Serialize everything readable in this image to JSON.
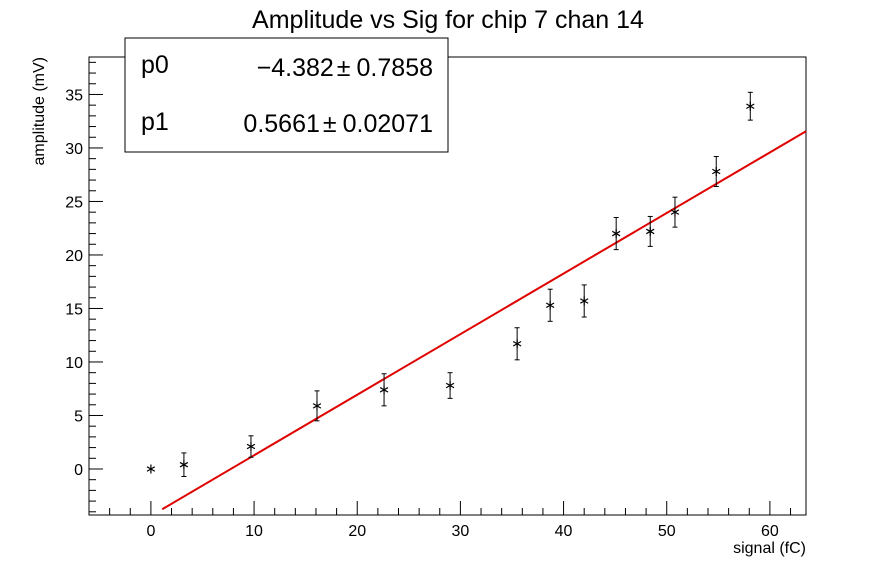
{
  "chart_data": {
    "type": "scatter",
    "title": "Amplitude vs Sig for chip 7 chan 14",
    "xlabel": "signal (fC)",
    "ylabel": "amplitude (mV)",
    "xlim": [
      -6,
      63.5
    ],
    "ylim": [
      -4.3,
      38.5
    ],
    "x_ticks": [
      0,
      10,
      20,
      30,
      40,
      50,
      60
    ],
    "y_ticks": [
      0,
      5,
      10,
      15,
      20,
      25,
      30,
      35
    ],
    "grid": false,
    "series": [
      {
        "marker": "star",
        "color": "#000000",
        "points": [
          {
            "x": 0.0,
            "y": 0.0,
            "err": 0.0
          },
          {
            "x": 3.2,
            "y": 0.4,
            "err": 1.1
          },
          {
            "x": 9.7,
            "y": 2.1,
            "err": 1.0
          },
          {
            "x": 16.1,
            "y": 5.9,
            "err": 1.4
          },
          {
            "x": 22.6,
            "y": 7.4,
            "err": 1.5
          },
          {
            "x": 29.0,
            "y": 7.8,
            "err": 1.2
          },
          {
            "x": 35.5,
            "y": 11.7,
            "err": 1.5
          },
          {
            "x": 38.7,
            "y": 15.3,
            "err": 1.5
          },
          {
            "x": 42.0,
            "y": 15.7,
            "err": 1.5
          },
          {
            "x": 45.1,
            "y": 22.0,
            "err": 1.5
          },
          {
            "x": 48.4,
            "y": 22.2,
            "err": 1.4
          },
          {
            "x": 50.8,
            "y": 24.0,
            "err": 1.4
          },
          {
            "x": 54.8,
            "y": 27.8,
            "err": 1.4
          },
          {
            "x": 58.1,
            "y": 33.9,
            "err": 1.3
          }
        ]
      }
    ],
    "fit": {
      "color": "#e00000",
      "p0": -4.382,
      "p1": 0.5661,
      "x_range": [
        1.1,
        63.5
      ]
    },
    "stats_box": {
      "rows": [
        {
          "name": "p0",
          "value": "−4.382",
          "pm": "±",
          "error": "0.7858"
        },
        {
          "name": "p1",
          "value": "0.5661",
          "pm": "±",
          "error": "0.02071"
        }
      ]
    }
  }
}
